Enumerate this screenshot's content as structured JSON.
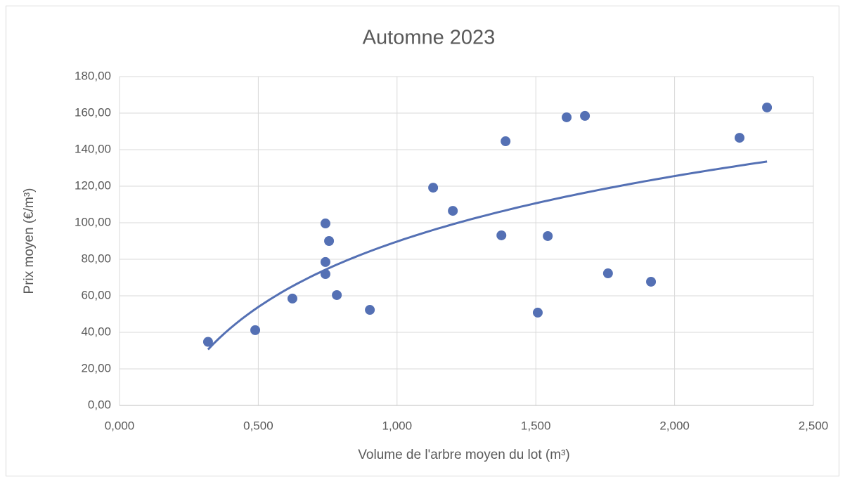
{
  "chart_data": {
    "type": "scatter",
    "title": "Automne 2023",
    "xlabel": "Volume de l'arbre moyen du lot (m³)",
    "ylabel": "Prix moyen (€/m³)",
    "series": [
      {
        "color": "#5470b4",
        "x": [
          0.319,
          0.489,
          0.623,
          0.742,
          0.742,
          0.742,
          0.755,
          0.783,
          0.902,
          1.13,
          1.201,
          1.376,
          1.391,
          1.507,
          1.543,
          1.611,
          1.677,
          1.76,
          1.915,
          2.234,
          2.333
        ],
        "values": [
          34.8,
          41.2,
          58.5,
          99.6,
          78.5,
          71.9,
          90.0,
          60.4,
          52.3,
          119.2,
          106.5,
          93.1,
          144.6,
          50.8,
          92.7,
          157.7,
          158.5,
          72.3,
          67.7,
          146.5,
          163.1
        ]
      }
    ],
    "trendline": {
      "type": "log",
      "a": 89.7,
      "b": 51.7,
      "color": "#5470b4"
    },
    "xlim": [
      0,
      2.5
    ],
    "xticks": [
      {
        "value": 0,
        "label": "0,000"
      },
      {
        "value": 0.5,
        "label": "0,500"
      },
      {
        "value": 1,
        "label": "1,000"
      },
      {
        "value": 1.5,
        "label": "1,500"
      },
      {
        "value": 2,
        "label": "2,000"
      },
      {
        "value": 2.5,
        "label": "2,500"
      }
    ],
    "ylim": [
      0,
      180
    ],
    "yticks": [
      {
        "value": 0,
        "label": "0,00"
      },
      {
        "value": 20,
        "label": "20,00"
      },
      {
        "value": 40,
        "label": "40,00"
      },
      {
        "value": 60,
        "label": "60,00"
      },
      {
        "value": 80,
        "label": "80,00"
      },
      {
        "value": 100,
        "label": "100,00"
      },
      {
        "value": 120,
        "label": "120,00"
      },
      {
        "value": 140,
        "label": "140,00"
      },
      {
        "value": 160,
        "label": "160,00"
      },
      {
        "value": 180,
        "label": "180,00"
      }
    ],
    "grid": true
  }
}
